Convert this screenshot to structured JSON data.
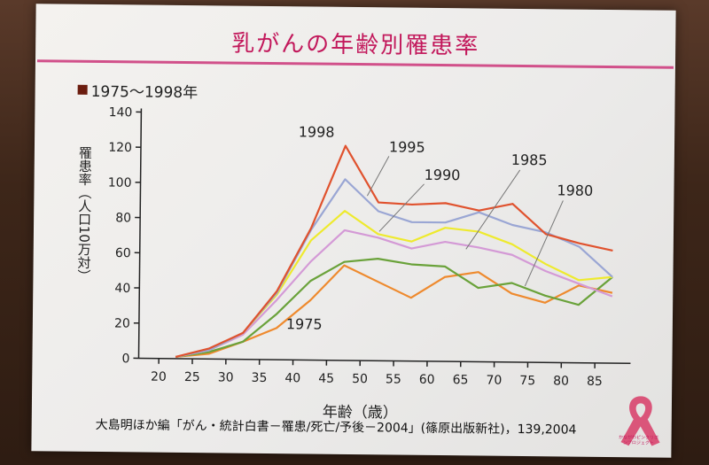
{
  "slide": {
    "title": "乳がんの年齢別罹患率",
    "period": "1975〜1998年",
    "ylabel": "罹患率（人口10万対）",
    "xlabel": "年齢（歳）",
    "source": "大島明ほか編「がん・統計白書－罹患/死亡/予後－2004」(篠原出版新社)，139,2004",
    "logo_text": "かながわピンクリボンプロジェクト",
    "logo_icon": "pink-ribbon-icon"
  },
  "colors": {
    "title": "#c2185b",
    "rule": "#d1508a",
    "1998": "#e0522e",
    "1995": "#9aa6d4",
    "1990": "#eeea2e",
    "1985": "#d49ad6",
    "1980": "#6aa23a",
    "1975": "#ee8a2e"
  },
  "chart_data": {
    "type": "line",
    "x": [
      22.5,
      27.5,
      32.5,
      37.5,
      42.5,
      47.5,
      52.5,
      57.5,
      62.5,
      67.5,
      72.5,
      77.5,
      82.5,
      87.5
    ],
    "xticks": [
      20,
      25,
      30,
      35,
      40,
      45,
      50,
      55,
      60,
      65,
      70,
      75,
      80,
      85
    ],
    "xlim": [
      17,
      89
    ],
    "ylim": [
      0,
      140
    ],
    "yticks": [
      0,
      20,
      40,
      60,
      80,
      100,
      120,
      140
    ],
    "xlabel": "年齢（歳）",
    "ylabel": "罹患率（人口10万対）",
    "title": "乳がんの年齢別罹患率",
    "series": [
      {
        "name": "1975",
        "values": [
          1,
          3,
          10,
          18,
          34,
          54,
          45,
          36,
          48,
          51,
          39,
          34,
          44,
          40
        ]
      },
      {
        "name": "1980",
        "values": [
          1,
          4,
          10,
          26,
          45,
          56,
          58,
          55,
          54,
          42,
          45,
          38,
          33,
          49
        ]
      },
      {
        "name": "1985",
        "values": [
          1,
          5,
          14,
          34,
          56,
          74,
          70,
          64,
          68,
          65,
          61,
          52,
          45,
          38
        ]
      },
      {
        "name": "1990",
        "values": [
          1,
          5,
          15,
          37,
          68,
          85,
          72,
          68,
          76,
          74,
          67,
          56,
          47,
          49
        ]
      },
      {
        "name": "1995",
        "values": [
          1,
          5,
          15,
          38,
          74,
          103,
          85,
          79,
          79,
          85,
          78,
          74,
          66,
          49
        ]
      },
      {
        "name": "1998",
        "values": [
          1,
          6,
          15,
          39,
          75,
          122,
          90,
          89,
          90,
          86,
          90,
          73,
          68,
          64
        ]
      }
    ],
    "annotations": [
      {
        "label": "1998",
        "series": "1998"
      },
      {
        "label": "1995",
        "series": "1995"
      },
      {
        "label": "1990",
        "series": "1990"
      },
      {
        "label": "1985",
        "series": "1985"
      },
      {
        "label": "1980",
        "series": "1980"
      },
      {
        "label": "1975",
        "series": "1975"
      }
    ],
    "grid": false,
    "legend": "none"
  }
}
